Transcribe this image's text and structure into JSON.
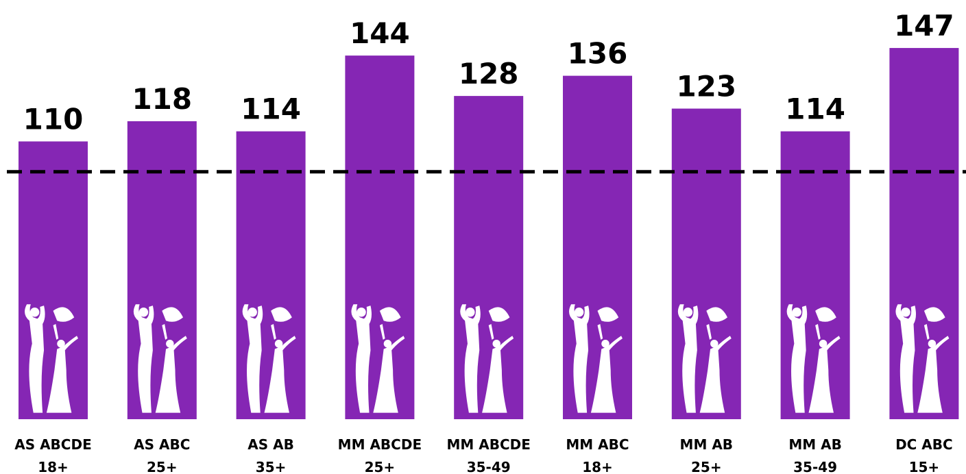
{
  "chart_data": {
    "type": "bar",
    "categories": [
      [
        "AS ABCDE",
        "18+"
      ],
      [
        "AS ABC",
        "25+"
      ],
      [
        "AS AB",
        "35+"
      ],
      [
        "MM ABCDE",
        "25+"
      ],
      [
        "MM ABCDE",
        "35-49"
      ],
      [
        "MM ABC",
        "18+"
      ],
      [
        "MM AB",
        "25+"
      ],
      [
        "MM AB",
        "35-49"
      ],
      [
        "DC ABC",
        "15+"
      ]
    ],
    "values": [
      110,
      118,
      114,
      144,
      128,
      136,
      123,
      114,
      147
    ],
    "color": "#8526b4",
    "ylim": [
      0,
      150
    ],
    "reference_line": 98
  }
}
